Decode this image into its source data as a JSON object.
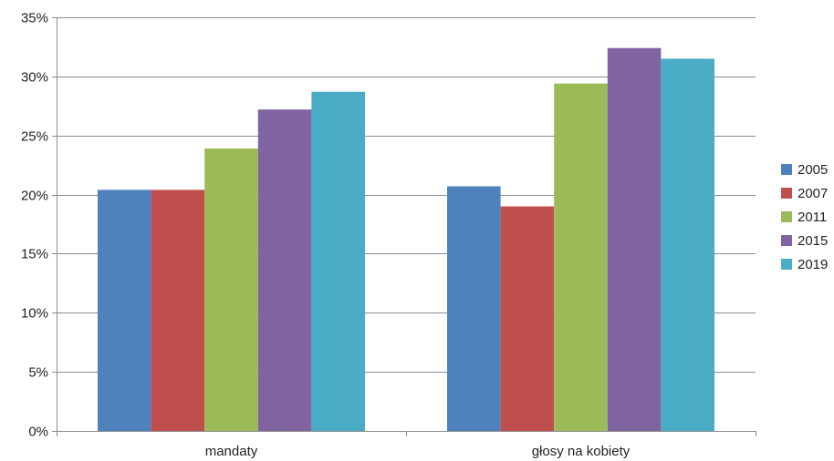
{
  "chart_data": {
    "type": "bar",
    "title": "",
    "xlabel": "",
    "ylabel": "",
    "ylim": [
      0,
      35
    ],
    "y_ticks": [
      "0%",
      "5%",
      "10%",
      "15%",
      "20%",
      "25%",
      "30%",
      "35%"
    ],
    "y_tick_values": [
      0,
      5,
      10,
      15,
      20,
      25,
      30,
      35
    ],
    "categories": [
      "mandaty",
      "głosy na kobiety"
    ],
    "series": [
      {
        "name": "2005",
        "color": "#4f81bd",
        "values": [
          20.4,
          20.7
        ]
      },
      {
        "name": "2007",
        "color": "#c0504d",
        "values": [
          20.4,
          19.0
        ]
      },
      {
        "name": "2011",
        "color": "#9bbb59",
        "values": [
          23.9,
          29.4
        ]
      },
      {
        "name": "2015",
        "color": "#8064a2",
        "values": [
          27.2,
          32.4
        ]
      },
      {
        "name": "2019",
        "color": "#4bacc6",
        "values": [
          28.7,
          31.5
        ]
      }
    ],
    "grid": true,
    "legend_position": "right"
  }
}
